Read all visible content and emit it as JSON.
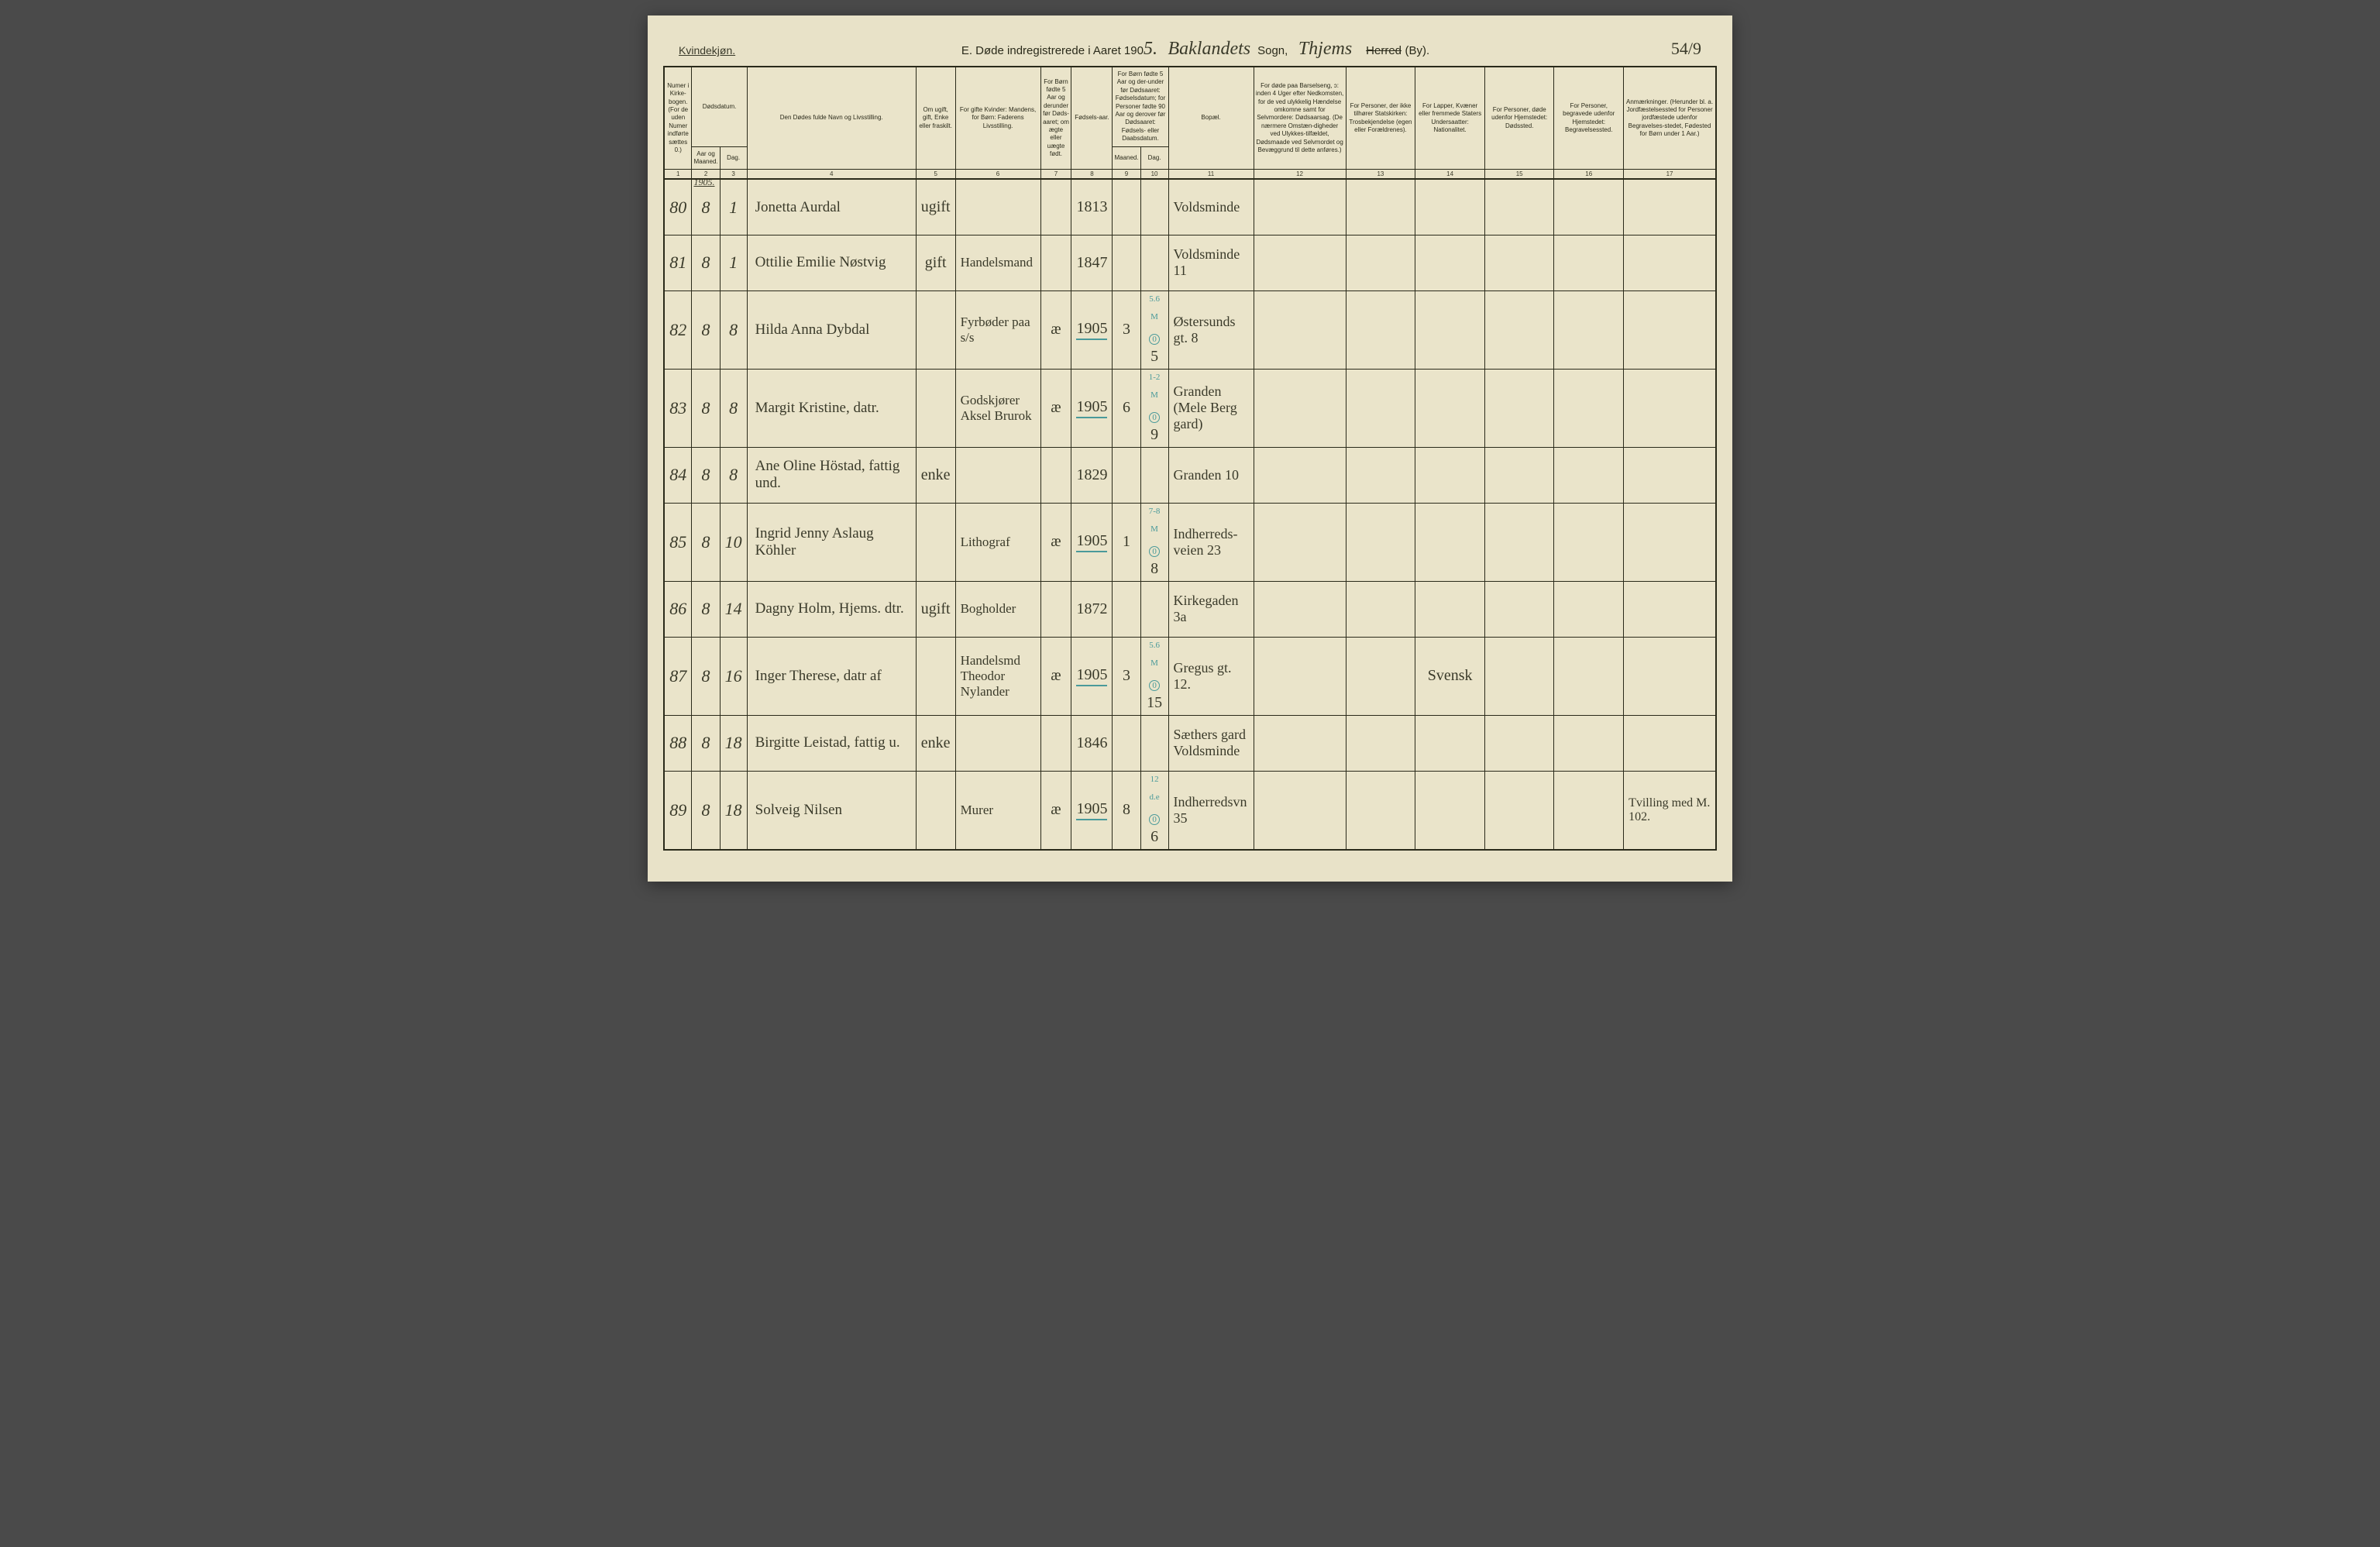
{
  "header": {
    "gender": "Kvindekjøn.",
    "title_prefix": "E.  Døde indregistrerede i Aaret 190",
    "year_suffix": "5.",
    "parish": "Baklandets",
    "sogn_label": "Sogn,",
    "district": "Thjems",
    "herred_strike": "Herred",
    "by_label": "(By).",
    "page_number": "54/9"
  },
  "columns": {
    "c1": "Numer i Kirke-bogen. (For de uden Numer indførte sættes 0.)",
    "c2a": "Dødsdatum.",
    "c2": "Aar og Maaned.",
    "c3": "Dag.",
    "c4": "Den Dødes fulde Navn og Livsstilling.",
    "c5": "Om ugift, gift, Enke eller fraskilt.",
    "c6": "For gifte Kvinder: Mandens, for Børn: Faderens Livsstilling.",
    "c7": "For Børn fødte 5 Aar og derunder før Døds-aaret; om ægte eller uægte født.",
    "c8": "Fødsels-aar.",
    "c9_10": "For Børn fødte 5 Aar og der-under før Dødsaaret: Fødselsdatum; for Personer fødte 90 Aar og derover før Dødsaaret: Fødsels- eller Daabsdatum.",
    "c9": "Maaned.",
    "c10": "Dag.",
    "c11": "Bopæl.",
    "c12": "For døde paa Barselseng, ɔ: inden 4 Uger efter Nedkomsten, for de ved ulykkelig Hændelse omkomne samt for Selvmordere: Dødsaarsag. (De nærmere Omstæn-digheder ved Ulykkes-tilfældet, Dødsmaade ved Selvmordet og Bevæggrund til dette anføres.)",
    "c13": "For Personer, der ikke tilhører Statskirken: Trosbekjendelse (egen eller Forældrenes).",
    "c14": "For Lapper, Kvæner eller fremmede Staters Undersaatter: Nationalitet.",
    "c15": "For Personer, døde udenfor Hjemstedet: Dødssted.",
    "c16": "For Personer, begravede udenfor Hjemstedet: Begravelsessted.",
    "c17": "Anmærkninger. (Herunder bl. a. Jordfæstelsessted for Personer jordfæstede udenfor Begravelses-stedet, Fødested for Børn under 1 Aar.)"
  },
  "colnums": [
    "1",
    "2",
    "3",
    "4",
    "5",
    "6",
    "7",
    "8",
    "9",
    "10",
    "11",
    "12",
    "13",
    "14",
    "15",
    "16",
    "17"
  ],
  "year_annot": "1905.",
  "rows": [
    {
      "n": "80",
      "m": "8",
      "d": "1",
      "name": "Jonetta Aurdal",
      "stat": "ugift",
      "father": "",
      "leg": "",
      "year": "1813",
      "bm": "",
      "bd": "",
      "place": "Voldsminde",
      "cause": "",
      "rel": "",
      "nat": "",
      "dsted": "",
      "bsted": "",
      "rem": "",
      "note": "",
      "circle": false,
      "ul": false
    },
    {
      "n": "81",
      "m": "8",
      "d": "1",
      "name": "Ottilie Emilie Nøstvig",
      "stat": "gift",
      "father": "Handelsmand",
      "leg": "",
      "year": "1847",
      "bm": "",
      "bd": "",
      "place": "Voldsminde 11",
      "cause": "",
      "rel": "",
      "nat": "",
      "dsted": "",
      "bsted": "",
      "rem": "",
      "note": "",
      "circle": false,
      "ul": false
    },
    {
      "n": "82",
      "m": "8",
      "d": "8",
      "name": "Hilda Anna Dybdal",
      "stat": "",
      "father": "Fyrbøder paa s/s",
      "leg": "æ",
      "year": "1905",
      "bm": "3",
      "bd": "5",
      "place": "Østersunds gt. 8",
      "cause": "",
      "rel": "",
      "nat": "",
      "dsted": "",
      "bsted": "",
      "rem": "",
      "note": "5.6 M",
      "circle": true,
      "ul": true
    },
    {
      "n": "83",
      "m": "8",
      "d": "8",
      "name": "Margit Kristine, datr.",
      "stat": "",
      "father": "Godskjører Aksel Brurok",
      "leg": "æ",
      "year": "1905",
      "bm": "6",
      "bd": "9",
      "place": "Granden (Mele Berg gard)",
      "cause": "",
      "rel": "",
      "nat": "",
      "dsted": "",
      "bsted": "",
      "rem": "",
      "note": "1-2 M",
      "circle": true,
      "ul": true
    },
    {
      "n": "84",
      "m": "8",
      "d": "8",
      "name": "Ane Oline Höstad, fattig und.",
      "stat": "enke",
      "father": "",
      "leg": "",
      "year": "1829",
      "bm": "",
      "bd": "",
      "place": "Granden 10",
      "cause": "",
      "rel": "",
      "nat": "",
      "dsted": "",
      "bsted": "",
      "rem": "",
      "note": "",
      "circle": false,
      "ul": false
    },
    {
      "n": "85",
      "m": "8",
      "d": "10",
      "name": "Ingrid Jenny Aslaug Köhler",
      "stat": "",
      "father": "Lithograf",
      "leg": "æ",
      "year": "1905",
      "bm": "1",
      "bd": "8",
      "place": "Indherreds-veien 23",
      "cause": "",
      "rel": "",
      "nat": "",
      "dsted": "",
      "bsted": "",
      "rem": "",
      "note": "7-8 M",
      "circle": true,
      "ul": true
    },
    {
      "n": "86",
      "m": "8",
      "d": "14",
      "name": "Dagny Holm, Hjems. dtr.",
      "stat": "ugift",
      "father": "Bogholder",
      "leg": "",
      "year": "1872",
      "bm": "",
      "bd": "",
      "place": "Kirkegaden 3a",
      "cause": "",
      "rel": "",
      "nat": "",
      "dsted": "",
      "bsted": "",
      "rem": "",
      "note": "",
      "circle": false,
      "ul": false
    },
    {
      "n": "87",
      "m": "8",
      "d": "16",
      "name": "Inger Therese, datr af",
      "stat": "",
      "father": "Handelsmd Theodor Nylander",
      "leg": "æ",
      "year": "1905",
      "bm": "3",
      "bd": "15",
      "place": "Gregus gt. 12.",
      "cause": "",
      "rel": "",
      "nat": "Svensk",
      "dsted": "",
      "bsted": "",
      "rem": "",
      "note": "5.6 M",
      "circle": true,
      "ul": true
    },
    {
      "n": "88",
      "m": "8",
      "d": "18",
      "name": "Birgitte Leistad, fattig u.",
      "stat": "enke",
      "father": "",
      "leg": "",
      "year": "1846",
      "bm": "",
      "bd": "",
      "place": "Sæthers gard Voldsminde",
      "cause": "",
      "rel": "",
      "nat": "",
      "dsted": "",
      "bsted": "",
      "rem": "",
      "note": "",
      "circle": false,
      "ul": false
    },
    {
      "n": "89",
      "m": "8",
      "d": "18",
      "name": "Solveig Nilsen",
      "stat": "",
      "father": "Murer",
      "leg": "æ",
      "year": "1905",
      "bm": "8",
      "bd": "6",
      "place": "Indherredsvn 35",
      "cause": "",
      "rel": "",
      "nat": "",
      "dsted": "",
      "bsted": "",
      "rem": "Tvilling med M. 102.",
      "note": "12 d.e",
      "circle": true,
      "ul": true
    }
  ],
  "colors": {
    "paper": "#e8e2c8",
    "ink": "#2a2a1a",
    "script": "#3a3a2a",
    "teal": "#4a9a9a"
  }
}
